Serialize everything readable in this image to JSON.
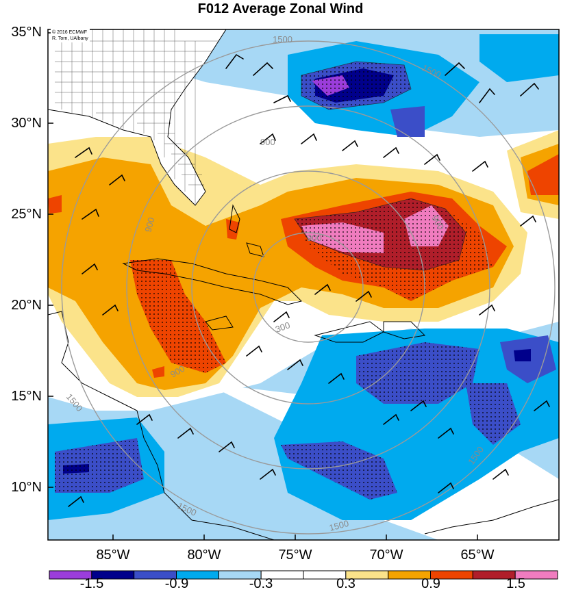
{
  "title": "F012 Average Zonal Wind",
  "credit": [
    "© 2016 ECMWF",
    "R. Torn, UAlbany"
  ],
  "lat_labels": [
    "35°N",
    "30°N",
    "25°N",
    "20°N",
    "15°N",
    "10°N"
  ],
  "lon_labels": [
    "85°W",
    "80°W",
    "75°W",
    "70°W",
    "65°W"
  ],
  "contour_labels": [
    "1500",
    "1500",
    "900",
    "900",
    "900",
    "900",
    "300",
    "1500",
    "900",
    "1500",
    "1500",
    "1500"
  ],
  "colorbar": {
    "tick_labels": [
      "-1.5",
      "-0.9",
      "-0.3",
      "0.3",
      "0.9",
      "1.5"
    ],
    "colors": [
      "#9b3ddb",
      "#00008b",
      "#3b4ec8",
      "#00aaee",
      "#a7d8f5",
      "#ffffff",
      "#ffffff",
      "#fbe38a",
      "#f5a300",
      "#ee4400",
      "#b01e2a",
      "#f07cbf"
    ]
  }
}
